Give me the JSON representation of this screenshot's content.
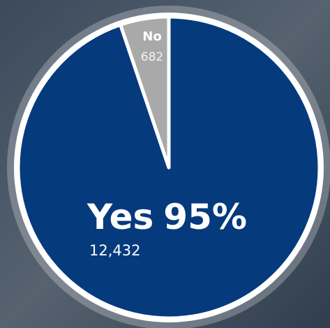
{
  "chart_data": {
    "type": "pie",
    "categories": [
      "Yes",
      "No"
    ],
    "values": [
      12432,
      682
    ],
    "value_labels": [
      "12,432",
      "682"
    ],
    "percent_labels": [
      "95%",
      null
    ],
    "colors": [
      "#053a7d",
      "#a9a9aa"
    ]
  }
}
